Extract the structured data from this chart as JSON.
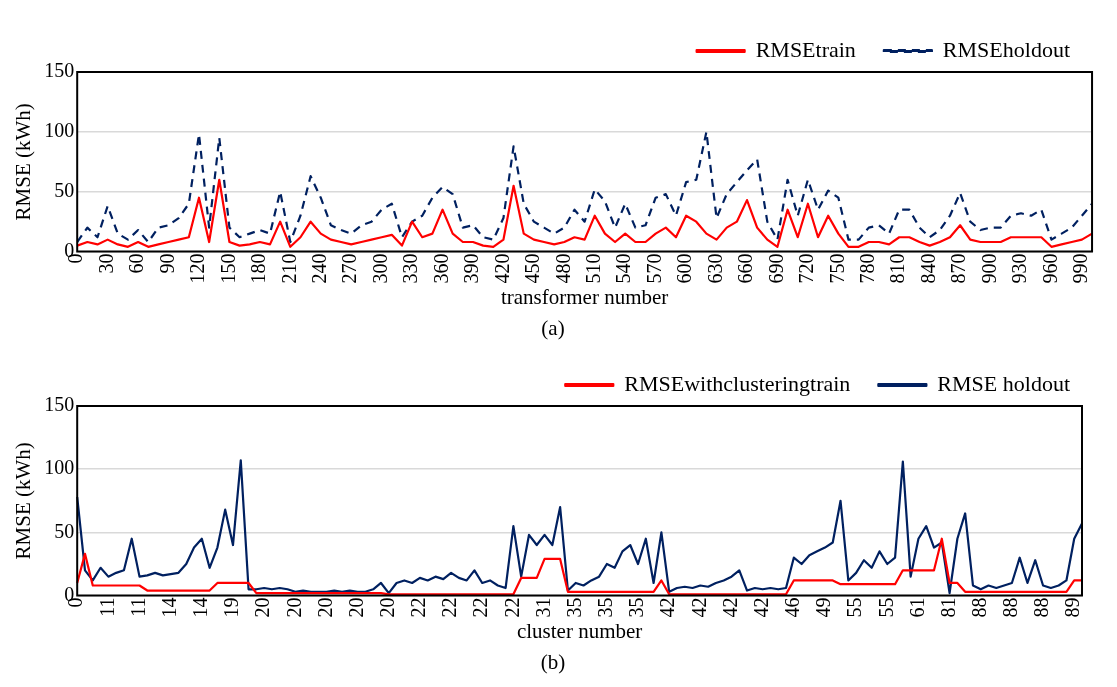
{
  "chart_data": [
    {
      "type": "line",
      "title": "(a)",
      "xlabel": "transformer number",
      "ylabel": "RMSE (kWh)",
      "legend": "top right",
      "grid": "y",
      "xlim": [
        0,
        1000
      ],
      "xticks": [
        0,
        30,
        60,
        90,
        120,
        150,
        180,
        210,
        240,
        270,
        300,
        330,
        360,
        390,
        420,
        450,
        480,
        510,
        540,
        570,
        600,
        630,
        660,
        690,
        720,
        750,
        780,
        810,
        840,
        870,
        900,
        930,
        960,
        990
      ],
      "ylim": [
        0,
        150
      ],
      "yticks": [
        0,
        50,
        100,
        150
      ],
      "x": [
        0,
        10,
        20,
        30,
        40,
        50,
        60,
        70,
        80,
        90,
        100,
        110,
        120,
        130,
        140,
        150,
        160,
        170,
        180,
        190,
        200,
        210,
        220,
        230,
        240,
        250,
        260,
        270,
        280,
        290,
        300,
        310,
        320,
        330,
        340,
        350,
        360,
        370,
        380,
        390,
        400,
        410,
        420,
        430,
        440,
        450,
        460,
        470,
        480,
        490,
        500,
        510,
        520,
        530,
        540,
        550,
        560,
        570,
        580,
        590,
        600,
        610,
        620,
        630,
        640,
        650,
        660,
        670,
        680,
        690,
        700,
        710,
        720,
        730,
        740,
        750,
        760,
        770,
        780,
        790,
        800,
        810,
        820,
        830,
        840,
        850,
        860,
        870,
        880,
        890,
        900,
        910,
        920,
        930,
        940,
        950,
        960,
        970,
        980,
        990,
        1000
      ],
      "series": [
        {
          "name": "RMSEtrain",
          "color": "#ff0000",
          "line_style": "solid",
          "values": [
            5,
            8,
            6,
            10,
            6,
            4,
            8,
            4,
            6,
            8,
            10,
            12,
            45,
            8,
            60,
            8,
            5,
            6,
            8,
            6,
            25,
            4,
            12,
            25,
            15,
            10,
            8,
            6,
            8,
            10,
            12,
            14,
            5,
            25,
            12,
            15,
            35,
            15,
            8,
            8,
            5,
            4,
            10,
            55,
            15,
            10,
            8,
            6,
            8,
            12,
            10,
            30,
            15,
            8,
            15,
            8,
            8,
            15,
            20,
            12,
            30,
            25,
            15,
            10,
            20,
            25,
            43,
            20,
            10,
            4,
            35,
            12,
            40,
            12,
            30,
            15,
            4,
            4,
            8,
            8,
            6,
            12,
            12,
            8,
            5,
            8,
            12,
            22,
            10,
            8,
            8,
            8,
            12,
            12,
            12,
            12,
            4,
            6,
            8,
            10,
            15
          ]
        },
        {
          "name": "RMSEholdout",
          "color": "#002060",
          "line_style": "dashed",
          "values": [
            8,
            20,
            12,
            38,
            15,
            10,
            18,
            8,
            20,
            22,
            28,
            40,
            98,
            20,
            95,
            20,
            12,
            15,
            18,
            15,
            50,
            8,
            30,
            63,
            45,
            22,
            18,
            15,
            22,
            25,
            35,
            40,
            12,
            25,
            30,
            45,
            54,
            48,
            20,
            22,
            12,
            10,
            28,
            88,
            40,
            25,
            20,
            15,
            20,
            35,
            25,
            52,
            42,
            20,
            40,
            20,
            22,
            45,
            48,
            30,
            58,
            60,
            100,
            28,
            48,
            58,
            68,
            77,
            25,
            10,
            60,
            30,
            60,
            35,
            51,
            45,
            10,
            10,
            20,
            22,
            15,
            35,
            35,
            20,
            12,
            18,
            30,
            49,
            25,
            18,
            20,
            20,
            30,
            32,
            30,
            35,
            10,
            15,
            20,
            30,
            40
          ]
        }
      ]
    },
    {
      "type": "line",
      "title": "(b)",
      "xlabel": "cluster number",
      "ylabel": "RMSE (kWh)",
      "legend": "top right",
      "grid": "y",
      "ylim": [
        0,
        150
      ],
      "yticks": [
        0,
        50,
        100,
        150
      ],
      "categories": [
        "0",
        null,
        null,
        null,
        "11",
        null,
        null,
        null,
        "11",
        null,
        null,
        null,
        "14",
        null,
        null,
        null,
        "14",
        null,
        null,
        null,
        "19",
        null,
        null,
        null,
        "20",
        null,
        null,
        null,
        "20",
        null,
        null,
        null,
        "20",
        null,
        null,
        null,
        "20",
        null,
        null,
        null,
        "20",
        null,
        null,
        null,
        "22",
        null,
        null,
        null,
        "22",
        null,
        null,
        null,
        "22",
        null,
        null,
        null,
        "22",
        null,
        null,
        null,
        "31",
        null,
        null,
        null,
        "35",
        null,
        null,
        null,
        "35",
        null,
        null,
        null,
        "35",
        null,
        null,
        null,
        "42",
        null,
        null,
        null,
        "42",
        null,
        null,
        null,
        "42",
        null,
        null,
        null,
        "42",
        null,
        null,
        null,
        "46",
        null,
        null,
        null,
        "49",
        null,
        null,
        null,
        "55",
        null,
        null,
        null,
        "55",
        null,
        null,
        null,
        "61",
        null,
        null,
        null,
        "81",
        null,
        null,
        null,
        "88",
        null,
        null,
        null,
        "88",
        null,
        null,
        null,
        "88",
        null,
        null,
        null,
        "89",
        null
      ],
      "series": [
        {
          "name": "RMSEwithclusteringtrain",
          "color": "#ff0000",
          "line_style": "solid",
          "values": [
            10,
            33,
            8,
            8,
            8,
            8,
            8,
            8,
            8,
            4,
            4,
            4,
            4,
            4,
            4,
            4,
            4,
            4,
            10,
            10,
            10,
            10,
            10,
            2,
            2,
            2,
            2,
            2,
            2,
            2,
            2,
            2,
            2,
            2,
            2,
            2,
            2,
            2,
            2,
            2,
            1,
            1,
            1,
            1,
            1,
            1,
            1,
            1,
            1,
            1,
            1,
            1,
            1,
            1,
            1,
            1,
            1,
            14,
            14,
            14,
            29,
            29,
            29,
            3,
            3,
            3,
            3,
            3,
            3,
            3,
            3,
            3,
            3,
            3,
            3,
            12,
            1,
            1,
            1,
            1,
            1,
            1,
            1,
            1,
            1,
            1,
            1,
            1,
            1,
            1,
            1,
            1,
            12,
            12,
            12,
            12,
            12,
            12,
            9,
            9,
            9,
            9,
            9,
            9,
            9,
            9,
            20,
            20,
            20,
            20,
            20,
            45,
            10,
            10,
            3,
            3,
            3,
            3,
            3,
            3,
            3,
            3,
            3,
            3,
            3,
            3,
            3,
            3,
            12,
            12
          ]
        },
        {
          "name": "RMSE holdout",
          "color": "#002060",
          "line_style": "solid",
          "values": [
            78,
            20,
            12,
            22,
            15,
            18,
            20,
            45,
            15,
            16,
            18,
            16,
            17,
            18,
            25,
            38,
            45,
            22,
            38,
            68,
            40,
            107,
            5,
            5,
            6,
            5,
            6,
            5,
            3,
            4,
            3,
            3,
            3,
            4,
            3,
            4,
            3,
            3,
            5,
            10,
            2,
            10,
            12,
            10,
            14,
            12,
            15,
            13,
            18,
            14,
            12,
            20,
            10,
            12,
            8,
            6,
            55,
            15,
            48,
            40,
            48,
            40,
            70,
            4,
            10,
            8,
            12,
            15,
            25,
            22,
            35,
            40,
            25,
            45,
            10,
            50,
            3,
            6,
            7,
            6,
            8,
            7,
            10,
            12,
            15,
            20,
            4,
            6,
            5,
            6,
            5,
            6,
            30,
            25,
            32,
            35,
            38,
            42,
            75,
            12,
            18,
            28,
            22,
            35,
            25,
            30,
            106,
            15,
            45,
            55,
            38,
            42,
            2,
            45,
            65,
            8,
            5,
            8,
            6,
            8,
            10,
            30,
            10,
            28,
            8,
            6,
            8,
            12,
            45,
            57
          ]
        }
      ]
    }
  ]
}
